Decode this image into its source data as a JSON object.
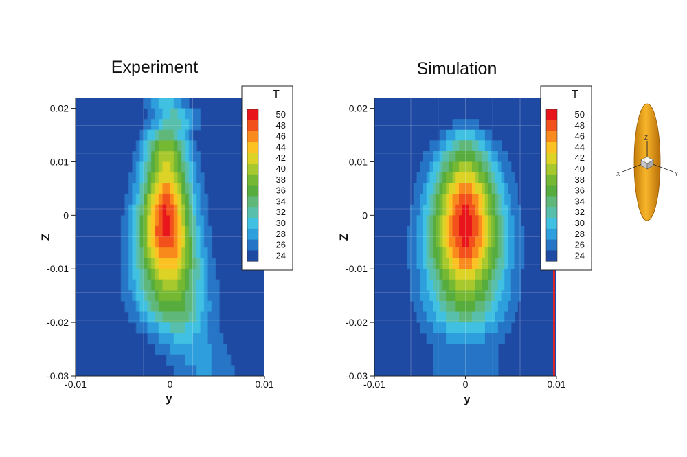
{
  "chart_data": [
    {
      "type": "heatmap",
      "title": "Experiment",
      "xlabel": "y",
      "ylabel": "Z",
      "xlim": [
        -0.01,
        0.01
      ],
      "ylim": [
        -0.03,
        0.022
      ],
      "x_ticks": [
        "-0.01",
        "0",
        "0.01"
      ],
      "x_tick_values": [
        -0.01,
        0,
        0.01
      ],
      "y_ticks": [
        "0.02",
        "0.01",
        "0",
        "-0.01",
        "-0.02",
        "-0.03"
      ],
      "y_tick_values": [
        0.02,
        0.01,
        0,
        -0.01,
        -0.02,
        -0.03
      ],
      "background_value": 24,
      "centerline": [
        {
          "z": 0.021,
          "y": -0.0003,
          "hw": 0.0021
        },
        {
          "z": 0.018,
          "y": 0.0006,
          "hw": 0.0024
        },
        {
          "z": 0.015,
          "y": -0.0004,
          "hw": 0.0022
        },
        {
          "z": 0.01,
          "y": -0.0004,
          "hw": 0.0024
        },
        {
          "z": 0.005,
          "y": -0.0004,
          "hw": 0.0026
        },
        {
          "z": 0.0,
          "y": -0.0005,
          "hw": 0.0028
        },
        {
          "z": -0.005,
          "y": -0.0004,
          "hw": 0.003
        },
        {
          "z": -0.01,
          "y": -0.0002,
          "hw": 0.0033
        },
        {
          "z": -0.015,
          "y": 0.0,
          "hw": 0.0036
        },
        {
          "z": -0.02,
          "y": 0.0006,
          "hw": 0.0036
        },
        {
          "z": -0.024,
          "y": 0.0018,
          "hw": 0.0036
        },
        {
          "z": -0.027,
          "y": 0.003,
          "hw": 0.0038
        },
        {
          "z": -0.03,
          "y": 0.004,
          "hw": 0.0036
        }
      ],
      "peak_profile": [
        {
          "z": 0.021,
          "t": 31
        },
        {
          "z": 0.016,
          "t": 34
        },
        {
          "z": 0.012,
          "t": 41
        },
        {
          "z": 0.007,
          "t": 44
        },
        {
          "z": 0.002,
          "t": 50
        },
        {
          "z": -0.004,
          "t": 51
        },
        {
          "z": -0.009,
          "t": 46
        },
        {
          "z": -0.013,
          "t": 41
        },
        {
          "z": -0.018,
          "t": 37
        },
        {
          "z": -0.022,
          "t": 31
        },
        {
          "z": -0.026,
          "t": 29
        },
        {
          "z": -0.03,
          "t": 28
        }
      ]
    },
    {
      "type": "heatmap",
      "title": "Simulation",
      "xlabel": "y",
      "ylabel": "Z",
      "xlim": [
        -0.01,
        0.01
      ],
      "ylim": [
        -0.03,
        0.022
      ],
      "x_ticks": [
        "-0.01",
        "0",
        "0.01"
      ],
      "x_tick_values": [
        -0.01,
        0,
        0.01
      ],
      "y_ticks": [
        "0.02",
        "0.01",
        "0",
        "-0.01",
        "-0.02",
        "-0.03"
      ],
      "y_tick_values": [
        0.02,
        0.01,
        0,
        -0.01,
        -0.02,
        -0.03
      ],
      "background_value": 24,
      "centerline": [
        {
          "z": 0.0185,
          "y": 0.0,
          "hw": 0.0012
        },
        {
          "z": 0.016,
          "y": 0.0,
          "hw": 0.0024
        },
        {
          "z": 0.012,
          "y": 0.0,
          "hw": 0.0032
        },
        {
          "z": 0.006,
          "y": 0.0,
          "hw": 0.0036
        },
        {
          "z": 0.0,
          "y": 0.0,
          "hw": 0.0038
        },
        {
          "z": -0.006,
          "y": 0.0,
          "hw": 0.004
        },
        {
          "z": -0.012,
          "y": 0.0,
          "hw": 0.0041
        },
        {
          "z": -0.017,
          "y": 0.0,
          "hw": 0.0043
        },
        {
          "z": -0.021,
          "y": 0.0,
          "hw": 0.0043
        },
        {
          "z": -0.024,
          "y": 0.0,
          "hw": 0.0042
        }
      ],
      "peak_profile": [
        {
          "z": 0.0185,
          "t": 25
        },
        {
          "z": 0.016,
          "t": 30
        },
        {
          "z": 0.012,
          "t": 36
        },
        {
          "z": 0.008,
          "t": 42
        },
        {
          "z": 0.004,
          "t": 48
        },
        {
          "z": 0.0,
          "t": 51
        },
        {
          "z": -0.004,
          "t": 51
        },
        {
          "z": -0.008,
          "t": 48
        },
        {
          "z": -0.012,
          "t": 42
        },
        {
          "z": -0.016,
          "t": 38
        },
        {
          "z": -0.02,
          "t": 33
        },
        {
          "z": -0.024,
          "t": 28
        }
      ]
    }
  ],
  "legend": {
    "title": "T",
    "levels": [
      "50",
      "48",
      "46",
      "44",
      "42",
      "40",
      "38",
      "36",
      "34",
      "32",
      "30",
      "28",
      "26",
      "24"
    ],
    "level_values": [
      50,
      48,
      46,
      44,
      42,
      40,
      38,
      36,
      34,
      32,
      30,
      28,
      26,
      24
    ],
    "colors": [
      "#e8151b",
      "#f2511c",
      "#f88a1e",
      "#fcc223",
      "#dcd326",
      "#a8c92e",
      "#74b833",
      "#56ac3d",
      "#5fb87a",
      "#58bfac",
      "#40c1e2",
      "#2d9fdc",
      "#2574c6",
      "#1f4aa3"
    ]
  },
  "axis_icon": {
    "labels": {
      "x": "X",
      "y": "Y",
      "z": "Z"
    },
    "body_color": "#f2a215"
  }
}
